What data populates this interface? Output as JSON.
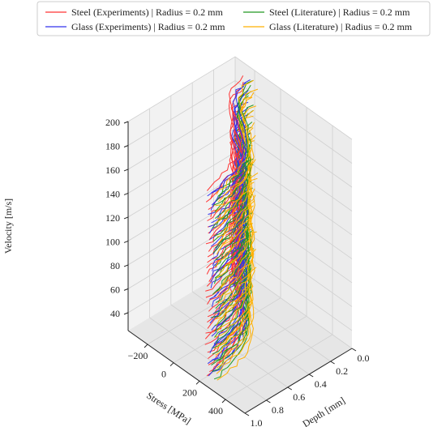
{
  "chart_data": {
    "type": "line",
    "title": "",
    "xlabel": "Depth [mm]",
    "ylabel": "Stress [MPa]",
    "zlabel": "Velocity [m/s]",
    "xlim": [
      0.0,
      1.0
    ],
    "ylim": [
      -350,
      550
    ],
    "zlim": [
      25,
      200
    ],
    "x_ticks": [
      "0.0",
      "0.2",
      "0.4",
      "0.6",
      "0.8",
      "1.0"
    ],
    "y_ticks": [
      "−200",
      "0",
      "200",
      "400"
    ],
    "z_ticks": [
      "40",
      "60",
      "80",
      "100",
      "120",
      "140",
      "160",
      "180",
      "200"
    ],
    "grid": true,
    "legend_position": "top",
    "series": [
      {
        "name": "Steel (Experiments) | Radius = 0.2 mm",
        "color": "#ff3333"
      },
      {
        "name": "Glass (Experiments) | Radius = 0.2 mm",
        "color": "#3333ee"
      },
      {
        "name": "Steel (Literature) | Radius = 0.2 mm",
        "color": "#229922"
      },
      {
        "name": "Glass (Literature) | Radius = 0.2 mm",
        "color": "#ffb000"
      }
    ],
    "velocities": [
      35,
      40,
      45,
      50,
      55,
      60,
      65,
      70,
      75,
      80,
      85,
      90,
      95,
      100,
      105,
      110,
      115,
      120,
      125,
      130,
      135,
      140,
      145,
      150,
      155,
      160,
      165,
      170,
      175,
      180,
      185,
      190
    ],
    "depth_points": [
      0.0,
      0.05,
      0.1,
      0.15,
      0.2,
      0.25,
      0.3,
      0.35,
      0.4,
      0.45,
      0.5,
      0.55,
      0.6,
      0.65,
      0.7,
      0.75,
      0.8,
      0.85,
      0.9,
      0.95,
      1.0
    ],
    "base_profile": [
      -240,
      -235,
      -225,
      -205,
      -175,
      -130,
      -70,
      0,
      60,
      110,
      150,
      180,
      205,
      225,
      240,
      255,
      265,
      275,
      285,
      295,
      300
    ]
  }
}
